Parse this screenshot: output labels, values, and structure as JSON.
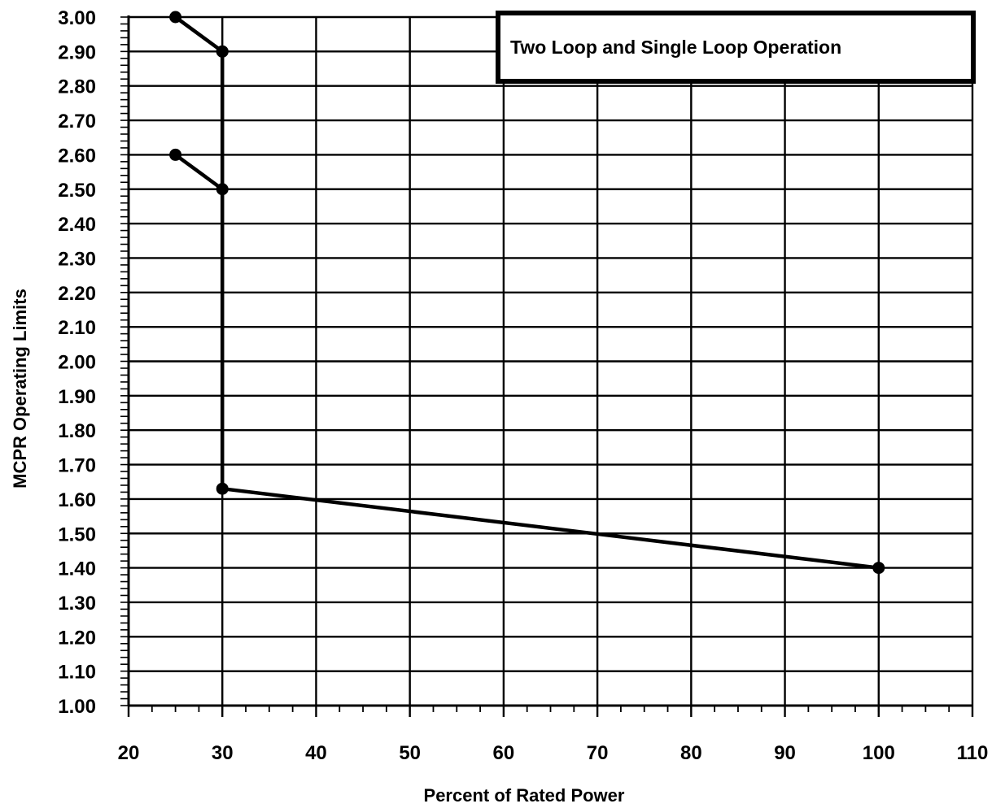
{
  "chart_data": {
    "type": "line",
    "title": "",
    "xlabel": "Percent of Rated Power",
    "ylabel": "MCPR Operating Limits",
    "xlim": [
      20,
      110
    ],
    "ylim": [
      1.0,
      3.0
    ],
    "x_ticks": [
      "20",
      "30",
      "40",
      "50",
      "60",
      "70",
      "80",
      "90",
      "100",
      "110"
    ],
    "y_ticks": [
      "1.00",
      "1.10",
      "1.20",
      "1.30",
      "1.40",
      "1.50",
      "1.60",
      "1.70",
      "1.80",
      "1.90",
      "2.00",
      "2.10",
      "2.20",
      "2.30",
      "2.40",
      "2.50",
      "2.60",
      "2.70",
      "2.80",
      "2.90",
      "3.00"
    ],
    "grid": true,
    "legend_position": "top-right",
    "legend_text": "Two Loop and Single Loop Operation",
    "series": [
      {
        "points": [
          [
            25,
            3.0
          ],
          [
            30,
            2.9
          ]
        ]
      },
      {
        "points": [
          [
            25,
            2.6
          ],
          [
            30,
            2.5
          ]
        ]
      },
      {
        "points": [
          [
            30,
            2.9
          ],
          [
            30,
            1.63
          ],
          [
            100,
            1.4
          ]
        ]
      }
    ],
    "line_color": "#000000"
  }
}
